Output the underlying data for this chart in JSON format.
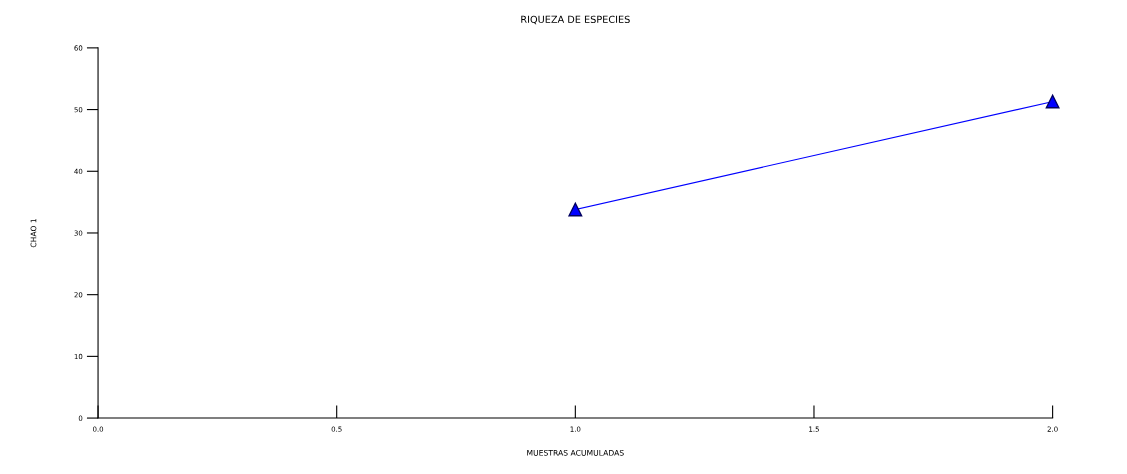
{
  "chart_data": {
    "type": "line",
    "title": "RIQUEZA DE ESPECIES",
    "xlabel": "MUESTRAS ACUMULADAS",
    "ylabel": "CHAO 1",
    "x": [
      1.0,
      2.0
    ],
    "series": [
      {
        "color": "#0000ff",
        "values": [
          33.8,
          51.3
        ]
      }
    ],
    "marker": "triangle",
    "line_style": "solid",
    "grid": false,
    "xlim": [
      0,
      2
    ],
    "xticks": [
      {
        "value": 0,
        "label": "0.0"
      },
      {
        "value": 0.5,
        "label": "0.5"
      },
      {
        "value": 1,
        "label": "1.0"
      },
      {
        "value": 1.5,
        "label": "1.5"
      },
      {
        "value": 2,
        "label": "2.0"
      }
    ],
    "ylim": [
      0,
      60
    ],
    "yticks": [
      0,
      10,
      20,
      30,
      40,
      50,
      60
    ]
  }
}
